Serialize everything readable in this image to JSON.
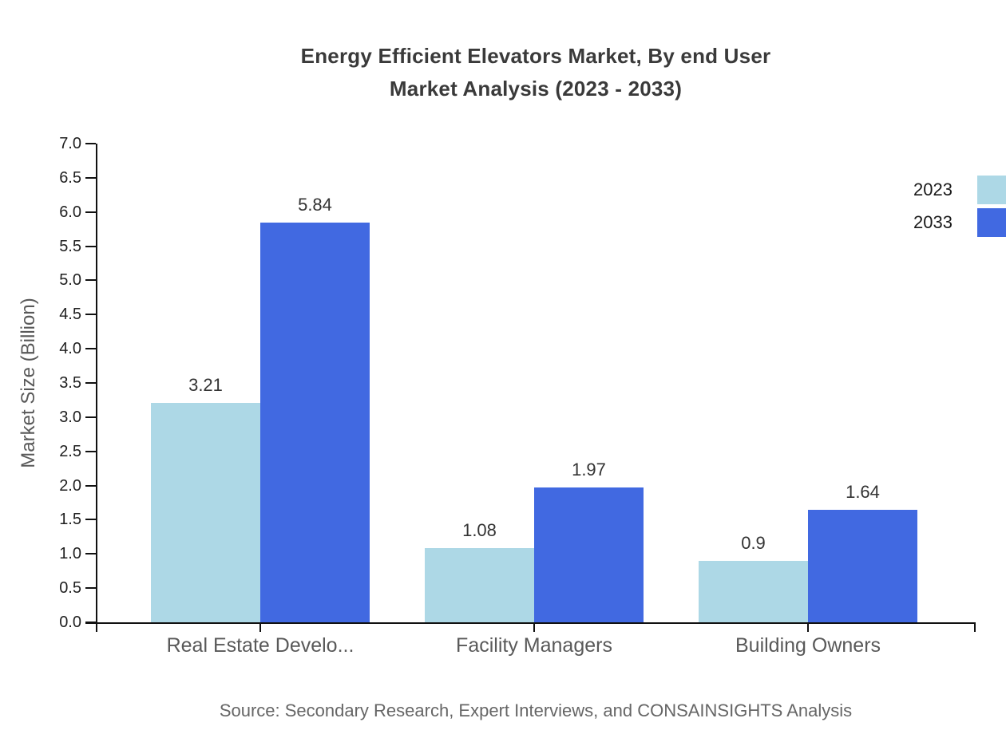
{
  "title": {
    "line1": "Energy Efficient Elevators Market, By end User",
    "line2": "Market Analysis (2023 - 2033)"
  },
  "source_note": "Source: Secondary Research, Expert Interviews, and CONSAINSIGHTS Analysis",
  "chart_data": {
    "type": "bar",
    "title": "Energy Efficient Elevators Market, By end User Market Analysis (2023 - 2033)",
    "categories": [
      "Real Estate Develo...",
      "Facility Managers",
      "Building Owners"
    ],
    "series": [
      {
        "name": "2023",
        "color": "#ADD8E6",
        "values": [
          3.21,
          1.08,
          0.9
        ]
      },
      {
        "name": "2033",
        "color": "#4169E1",
        "values": [
          5.84,
          1.97,
          1.64
        ]
      }
    ],
    "xlabel": "",
    "ylabel": "Market Size (Billion)",
    "ylim": [
      0,
      7
    ],
    "ytick_step": 0.5,
    "ytick_format_decimals": 1,
    "grid": false,
    "value_labels": true,
    "legend_position": "top-right",
    "axis_color": "#111111"
  }
}
